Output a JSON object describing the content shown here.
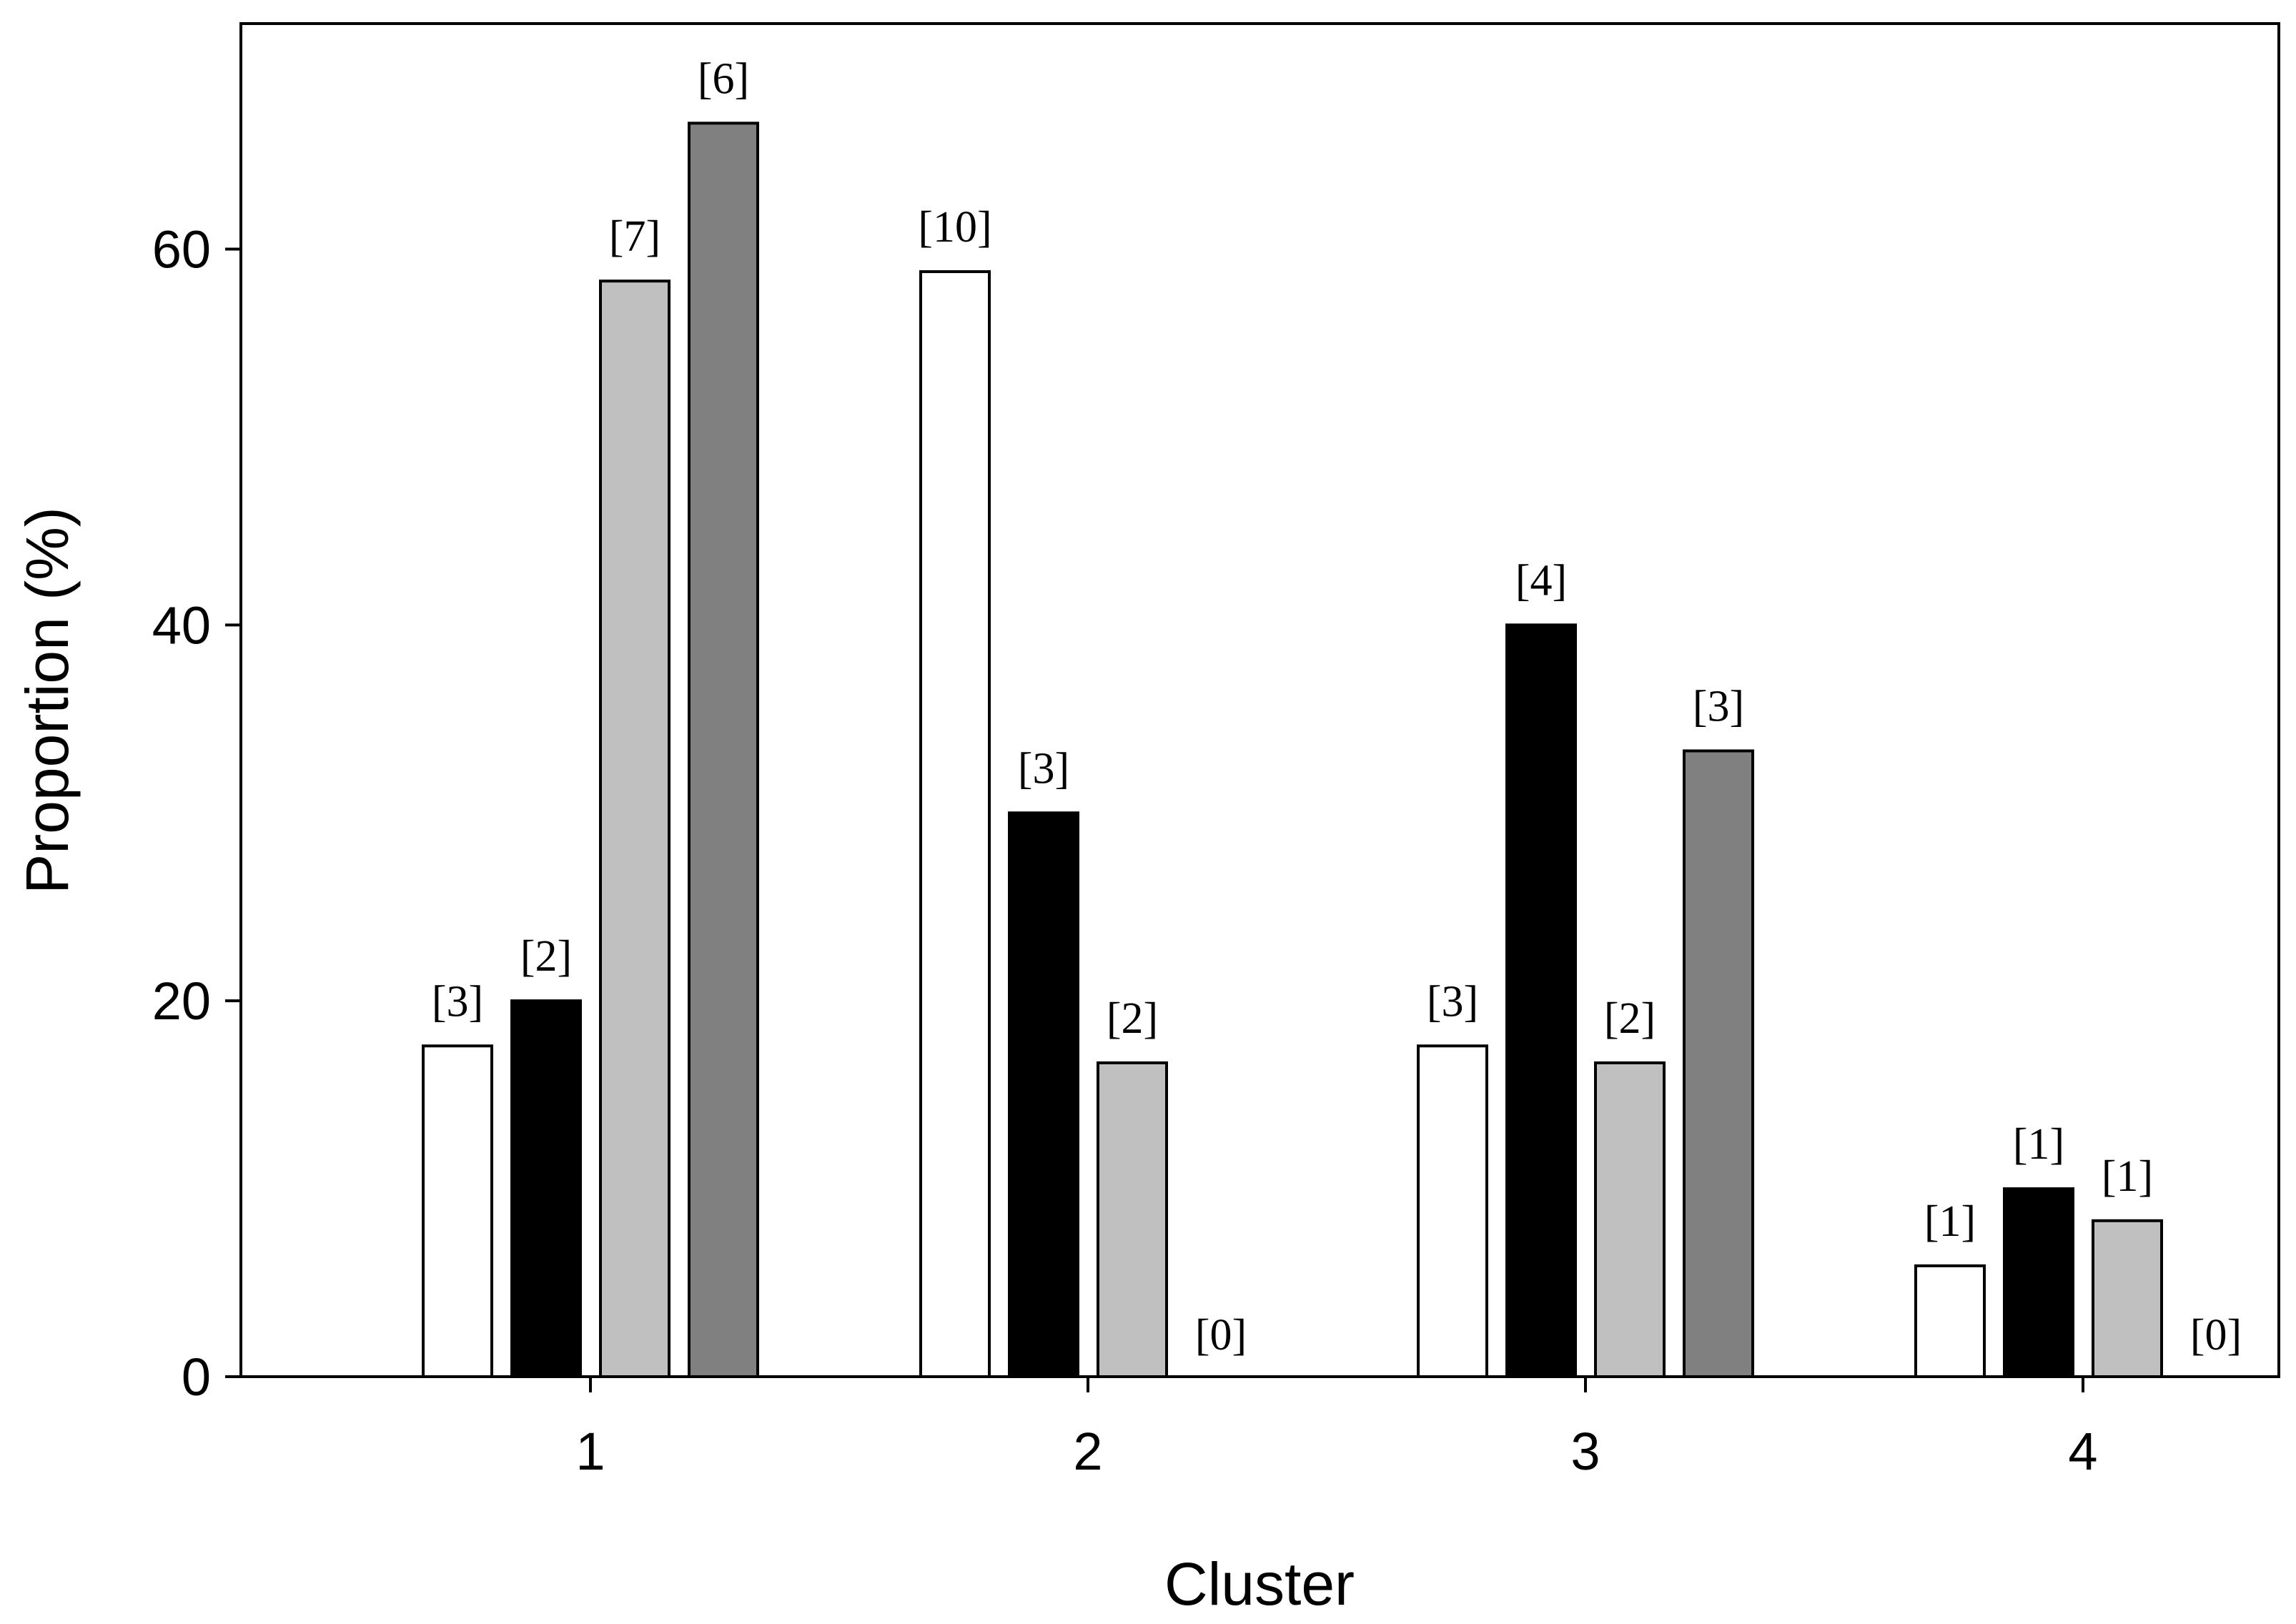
{
  "chart_data": {
    "type": "bar",
    "title": "",
    "xlabel": "Cluster",
    "ylabel": "Proportion (%)",
    "categories": [
      "1",
      "2",
      "3",
      "4"
    ],
    "ylim": [
      0,
      72
    ],
    "yticks": [
      0,
      20,
      40,
      60
    ],
    "grid": false,
    "legend": "none",
    "series": [
      {
        "color": "#ffffff",
        "values": [
          17.6,
          58.8,
          17.6,
          5.9
        ],
        "labels": [
          "[3]",
          "[10]",
          "[3]",
          "[1]"
        ]
      },
      {
        "color": "#000000",
        "values": [
          20,
          30,
          40,
          10
        ],
        "labels": [
          "[2]",
          "[3]",
          "[4]",
          "[1]"
        ]
      },
      {
        "color": "#c0c0c0",
        "values": [
          58.3,
          16.7,
          16.7,
          8.3
        ],
        "labels": [
          "[7]",
          "[2]",
          "[2]",
          "[1]"
        ]
      },
      {
        "color": "#808080",
        "values": [
          66.7,
          0,
          33.3,
          0
        ],
        "labels": [
          "[6]",
          "[0]",
          "[3]",
          "[0]"
        ]
      }
    ]
  }
}
